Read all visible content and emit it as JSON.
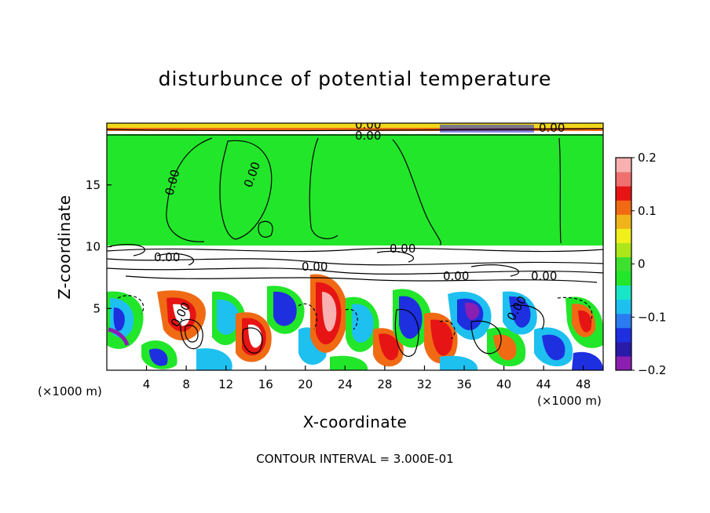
{
  "title": "disturbunce of potential temperature",
  "xlabel": "X-coordinate",
  "ylabel": "Z-coordinate",
  "x_unit": "(×1000 m)",
  "contour_interval": "CONTOUR INTERVAL = 3.000E-01",
  "chart_data": {
    "type": "heatmap",
    "title": "disturbunce of potential temperature",
    "xlabel": "X-coordinate",
    "ylabel": "Z-coordinate",
    "x_unit": "(×1000 m)",
    "xlim": [
      0,
      50
    ],
    "ylim": [
      0,
      20
    ],
    "x_ticks": [
      4,
      8,
      12,
      16,
      20,
      24,
      28,
      32,
      36,
      40,
      44,
      48
    ],
    "y_ticks": [
      5,
      10,
      15
    ],
    "colorbar": {
      "range": [
        -0.2,
        0.2
      ],
      "ticks": [
        -0.2,
        -0.1,
        0,
        0.1,
        0.2
      ],
      "tick_labels": [
        "−0.2",
        "−0.1",
        "0",
        "0.1",
        "0.2"
      ],
      "colors": [
        "#8a1fb2",
        "#2a1aa8",
        "#1e2fe0",
        "#2a7cf0",
        "#1ec0f0",
        "#19e6c8",
        "#22e62a",
        "#3ee030",
        "#aee61c",
        "#f0f01c",
        "#f0b41a",
        "#f06a14",
        "#e61414",
        "#f07070",
        "#f8b0b0"
      ]
    },
    "contour_labels": [
      "0.00",
      "0.00",
      "0.00",
      "0.00",
      "0.00",
      "0.00",
      "0.00",
      "0.00",
      "0.00",
      "0.00",
      "0.00",
      "0.00"
    ],
    "annotation": "CONTOUR INTERVAL = 3.000E-01"
  }
}
